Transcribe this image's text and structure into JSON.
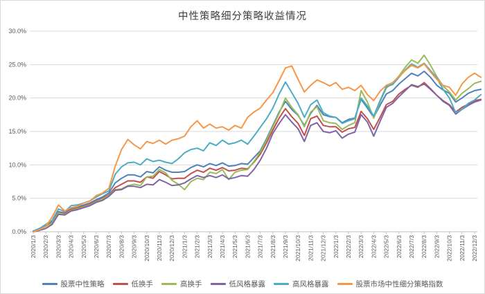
{
  "window": {
    "background": "#ffffff",
    "border_color": "#d9d9d9",
    "gridline_color": "#d9d9d9",
    "axis_color": "#bfbfbf",
    "tick_text_color": "#595959",
    "title_color": "#404040"
  },
  "chart_data": {
    "type": "line",
    "title": "中性策略细分策略收益情况",
    "xlabel": "",
    "ylabel": "",
    "ylim": [
      0,
      30
    ],
    "grid": true,
    "legend_position": "bottom",
    "x_tick_rotation": -90,
    "line_width": 2,
    "y_tick_values": [
      0,
      5,
      10,
      15,
      20,
      25,
      30
    ],
    "y_tick_labels": [
      "0.0%",
      "5.0%",
      "10.0%",
      "15.0%",
      "20.0%",
      "25.0%",
      "30.0%"
    ],
    "categories": [
      "2020/1/3",
      "2020/2/3",
      "2020/3/3",
      "2020/4/3",
      "2020/5/3",
      "2020/6/3",
      "2020/7/3",
      "2020/8/3",
      "2020/9/3",
      "2020/10/3",
      "2020/11/3",
      "2020/12/3",
      "2021/1/3",
      "2021/2/3",
      "2021/3/3",
      "2021/4/3",
      "2021/5/3",
      "2021/6/3",
      "2021/7/3",
      "2021/8/3",
      "2021/9/3",
      "2021/10/3",
      "2021/11/3",
      "2021/12/3",
      "2022/1/3",
      "2022/2/3",
      "2022/3/3",
      "2022/4/3",
      "2022/5/3",
      "2022/6/3",
      "2022/7/3",
      "2022/8/3",
      "2022/9/3",
      "2022/10/3",
      "2022/11/3",
      "2022/12/3"
    ],
    "x_samples_per_month": 2,
    "value_unit": "%",
    "series": [
      {
        "key": "equity-neutral-strategy",
        "name": "股票中性策略",
        "color": "#4F81BD",
        "values": [
          0.1,
          0.4,
          0.9,
          1.5,
          3.0,
          2.8,
          3.5,
          3.7,
          4.0,
          4.3,
          4.8,
          5.2,
          5.8,
          7.3,
          8.0,
          8.5,
          8.5,
          8.2,
          9.0,
          8.8,
          9.7,
          9.2,
          8.9,
          8.9,
          9.0,
          9.6,
          10.0,
          9.7,
          10.2,
          9.9,
          10.3,
          9.8,
          9.9,
          10.2,
          10.1,
          11.1,
          12.1,
          13.9,
          15.9,
          17.9,
          19.5,
          18.3,
          17.4,
          15.9,
          17.7,
          18.9,
          17.5,
          17.2,
          17.1,
          16.3,
          16.8,
          17.0,
          19.8,
          18.5,
          17.1,
          18.9,
          20.6,
          21.1,
          22.1,
          22.9,
          23.7,
          23.3,
          24.0,
          23.1,
          21.9,
          21.2,
          20.7,
          19.4,
          20.0,
          20.7,
          21.1,
          21.3
        ]
      },
      {
        "key": "low-turnover",
        "name": "低换手",
        "color": "#C0504D",
        "values": [
          0.1,
          0.4,
          0.9,
          1.4,
          2.9,
          2.7,
          3.3,
          3.5,
          3.8,
          4.1,
          4.6,
          5.0,
          5.5,
          6.6,
          7.1,
          7.6,
          7.6,
          7.4,
          8.2,
          8.0,
          9.0,
          8.5,
          7.9,
          8.0,
          8.0,
          8.7,
          9.2,
          8.9,
          9.5,
          9.2,
          9.6,
          9.1,
          9.2,
          9.5,
          9.4,
          10.4,
          11.6,
          13.3,
          15.2,
          17.0,
          18.4,
          17.2,
          16.2,
          14.4,
          16.9,
          17.3,
          15.9,
          15.7,
          15.7,
          14.9,
          15.4,
          15.6,
          18.0,
          16.9,
          15.3,
          17.1,
          19.0,
          19.5,
          20.6,
          21.3,
          21.9,
          21.6,
          22.3,
          21.4,
          20.4,
          19.6,
          19.0,
          17.9,
          18.6,
          19.1,
          19.6,
          19.8
        ]
      },
      {
        "key": "high-turnover",
        "name": "高换手",
        "color": "#9BBB59",
        "values": [
          0.1,
          0.4,
          0.8,
          1.3,
          2.8,
          2.6,
          3.2,
          3.4,
          3.7,
          4.0,
          4.5,
          4.9,
          5.4,
          6.3,
          6.4,
          6.9,
          7.1,
          6.9,
          8.2,
          8.3,
          9.3,
          8.8,
          7.7,
          7.1,
          6.3,
          7.5,
          8.0,
          7.8,
          8.9,
          8.7,
          9.3,
          7.8,
          8.9,
          9.2,
          9.3,
          10.5,
          11.9,
          13.7,
          15.7,
          17.7,
          20.0,
          18.6,
          17.5,
          15.7,
          17.9,
          18.7,
          16.6,
          16.3,
          16.2,
          15.3,
          15.9,
          16.3,
          21.1,
          19.4,
          17.0,
          19.4,
          21.5,
          22.2,
          23.3,
          24.6,
          25.7,
          25.2,
          26.4,
          24.9,
          23.2,
          21.8,
          20.9,
          19.7,
          20.7,
          21.4,
          22.2,
          22.5
        ]
      },
      {
        "key": "low-style-exposure",
        "name": "低风格暴露",
        "color": "#8064A2",
        "values": [
          0.0,
          0.2,
          0.5,
          1.1,
          2.6,
          2.5,
          3.1,
          3.3,
          3.6,
          3.9,
          4.4,
          4.7,
          5.3,
          6.2,
          6.3,
          6.8,
          6.8,
          6.6,
          7.1,
          7.0,
          7.8,
          7.4,
          6.9,
          7.0,
          7.3,
          7.9,
          8.4,
          8.1,
          8.4,
          8.1,
          8.5,
          7.9,
          8.1,
          8.4,
          8.3,
          9.3,
          10.7,
          12.5,
          14.7,
          16.2,
          17.5,
          16.4,
          15.4,
          13.5,
          15.9,
          16.3,
          15.0,
          14.8,
          15.1,
          14.0,
          14.6,
          14.9,
          17.5,
          16.4,
          14.3,
          16.5,
          18.6,
          19.2,
          20.2,
          21.1,
          22.0,
          21.7,
          22.1,
          21.3,
          20.4,
          19.5,
          18.9,
          17.6,
          18.3,
          18.9,
          19.4,
          19.7
        ]
      },
      {
        "key": "high-style-exposure",
        "name": "高风格暴露",
        "color": "#4BACC6",
        "values": [
          0.1,
          0.5,
          1.1,
          1.7,
          3.4,
          3.0,
          3.9,
          4.0,
          4.3,
          4.6,
          5.2,
          5.7,
          6.1,
          8.6,
          9.7,
          10.3,
          10.4,
          10.0,
          10.9,
          10.5,
          10.7,
          10.4,
          10.2,
          10.9,
          11.8,
          12.3,
          12.5,
          12.1,
          13.3,
          12.9,
          13.7,
          13.1,
          13.3,
          13.7,
          13.1,
          14.3,
          15.6,
          16.9,
          18.5,
          20.6,
          22.4,
          20.8,
          19.2,
          17.1,
          19.0,
          19.7,
          17.8,
          17.3,
          17.1,
          16.2,
          16.6,
          16.9,
          20.0,
          18.8,
          17.3,
          19.6,
          21.7,
          22.0,
          23.1,
          24.2,
          25.1,
          24.6,
          25.2,
          24.1,
          23.0,
          21.3,
          20.0,
          17.8,
          18.3,
          19.2,
          19.7,
          20.5
        ]
      },
      {
        "key": "market-neutral-segment-index",
        "name": "股票市场中性细分策略指数",
        "color": "#F79646",
        "values": [
          0.0,
          0.3,
          0.8,
          2.2,
          4.0,
          3.1,
          3.6,
          3.8,
          4.3,
          4.6,
          5.4,
          5.8,
          6.5,
          9.8,
          12.3,
          13.8,
          13.0,
          12.4,
          13.5,
          13.2,
          13.7,
          13.1,
          13.7,
          13.9,
          14.3,
          15.7,
          16.6,
          15.5,
          16.1,
          15.5,
          15.7,
          15.2,
          15.9,
          15.5,
          17.1,
          17.9,
          18.5,
          19.7,
          20.8,
          22.6,
          24.5,
          24.8,
          22.8,
          20.9,
          21.9,
          22.7,
          22.3,
          21.8,
          22.3,
          21.3,
          21.6,
          21.1,
          21.9,
          20.5,
          19.6,
          21.0,
          21.9,
          22.3,
          23.2,
          24.1,
          24.9,
          24.5,
          25.1,
          23.9,
          22.8,
          21.9,
          21.6,
          20.4,
          22.1,
          23.1,
          23.7,
          23.1
        ]
      }
    ]
  }
}
